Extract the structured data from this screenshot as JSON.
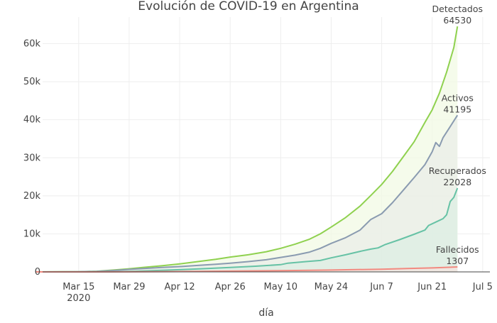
{
  "chart_data": {
    "type": "area",
    "title": "Evolución de COVID-19 en Argentina",
    "xlabel": "día",
    "ylabel": "",
    "x_start": "2020-03-03",
    "x_end": "2020-06-28",
    "xlim": [
      "2020-03-05",
      "2020-07-07"
    ],
    "ylim": [
      0,
      67000
    ],
    "x_ticks": [
      {
        "date": "2020-03-15",
        "label": "Mar 15",
        "sublabel": "2020"
      },
      {
        "date": "2020-03-29",
        "label": "Mar 29"
      },
      {
        "date": "2020-04-12",
        "label": "Apr 12"
      },
      {
        "date": "2020-04-26",
        "label": "Apr 26"
      },
      {
        "date": "2020-05-10",
        "label": "May 10"
      },
      {
        "date": "2020-05-24",
        "label": "May 24"
      },
      {
        "date": "2020-06-07",
        "label": "Jun 7"
      },
      {
        "date": "2020-06-21",
        "label": "Jun 21"
      },
      {
        "date": "2020-07-05",
        "label": "Jul 5"
      }
    ],
    "y_ticks": [
      {
        "value": 0,
        "label": "0"
      },
      {
        "value": 10000,
        "label": "10k"
      },
      {
        "value": 20000,
        "label": "20k"
      },
      {
        "value": 30000,
        "label": "30k"
      },
      {
        "value": 40000,
        "label": "40k"
      },
      {
        "value": 50000,
        "label": "50k"
      },
      {
        "value": 60000,
        "label": "60k"
      }
    ],
    "grid": true,
    "series": [
      {
        "name": "Detectados",
        "color": "#8fd14f",
        "fill": "#f2f9e4",
        "annotation": {
          "name": "Detectados",
          "value": "64530"
        },
        "points": [
          [
            "2020-03-03",
            0
          ],
          [
            "2020-03-10",
            30
          ],
          [
            "2020-03-15",
            60
          ],
          [
            "2020-03-20",
            160
          ],
          [
            "2020-03-25",
            500
          ],
          [
            "2020-03-29",
            820
          ],
          [
            "2020-04-02",
            1200
          ],
          [
            "2020-04-07",
            1600
          ],
          [
            "2020-04-12",
            2100
          ],
          [
            "2020-04-17",
            2700
          ],
          [
            "2020-04-22",
            3300
          ],
          [
            "2020-04-26",
            3900
          ],
          [
            "2020-05-01",
            4500
          ],
          [
            "2020-05-06",
            5300
          ],
          [
            "2020-05-10",
            6200
          ],
          [
            "2020-05-14",
            7300
          ],
          [
            "2020-05-18",
            8600
          ],
          [
            "2020-05-21",
            10000
          ],
          [
            "2020-05-24",
            11800
          ],
          [
            "2020-05-28",
            14300
          ],
          [
            "2020-06-01",
            17300
          ],
          [
            "2020-06-04",
            20100
          ],
          [
            "2020-06-07",
            23000
          ],
          [
            "2020-06-10",
            26400
          ],
          [
            "2020-06-13",
            30300
          ],
          [
            "2020-06-16",
            34200
          ],
          [
            "2020-06-19",
            39300
          ],
          [
            "2020-06-21",
            42600
          ],
          [
            "2020-06-23",
            47000
          ],
          [
            "2020-06-25",
            52500
          ],
          [
            "2020-06-27",
            59000
          ],
          [
            "2020-06-28",
            64530
          ]
        ]
      },
      {
        "name": "Activos",
        "color": "#8a9bb0",
        "fill": "#e9eee8",
        "annotation": {
          "name": "Activos",
          "value": "41195"
        },
        "points": [
          [
            "2020-03-03",
            0
          ],
          [
            "2020-03-10",
            25
          ],
          [
            "2020-03-15",
            50
          ],
          [
            "2020-03-20",
            130
          ],
          [
            "2020-03-25",
            400
          ],
          [
            "2020-03-29",
            650
          ],
          [
            "2020-04-02",
            900
          ],
          [
            "2020-04-07",
            1150
          ],
          [
            "2020-04-12",
            1400
          ],
          [
            "2020-04-17",
            1700
          ],
          [
            "2020-04-22",
            2000
          ],
          [
            "2020-04-26",
            2300
          ],
          [
            "2020-05-01",
            2700
          ],
          [
            "2020-05-06",
            3200
          ],
          [
            "2020-05-10",
            3800
          ],
          [
            "2020-05-14",
            4400
          ],
          [
            "2020-05-18",
            5200
          ],
          [
            "2020-05-21",
            6200
          ],
          [
            "2020-05-24",
            7500
          ],
          [
            "2020-05-28",
            9000
          ],
          [
            "2020-06-01",
            11000
          ],
          [
            "2020-06-04",
            13800
          ],
          [
            "2020-06-07",
            15300
          ],
          [
            "2020-06-10",
            18200
          ],
          [
            "2020-06-13",
            21500
          ],
          [
            "2020-06-16",
            24800
          ],
          [
            "2020-06-19",
            28200
          ],
          [
            "2020-06-21",
            31600
          ],
          [
            "2020-06-22",
            34000
          ],
          [
            "2020-06-23",
            33000
          ],
          [
            "2020-06-24",
            35300
          ],
          [
            "2020-06-26",
            38200
          ],
          [
            "2020-06-28",
            41195
          ]
        ]
      },
      {
        "name": "Recuperados",
        "color": "#66c2a5",
        "fill": "#dcede3",
        "annotation": {
          "name": "Recuperados",
          "value": "22028"
        },
        "points": [
          [
            "2020-03-03",
            0
          ],
          [
            "2020-03-15",
            5
          ],
          [
            "2020-03-25",
            50
          ],
          [
            "2020-03-29",
            120
          ],
          [
            "2020-04-05",
            350
          ],
          [
            "2020-04-12",
            580
          ],
          [
            "2020-04-19",
            850
          ],
          [
            "2020-04-26",
            1150
          ],
          [
            "2020-05-03",
            1500
          ],
          [
            "2020-05-10",
            1900
          ],
          [
            "2020-05-12",
            2300
          ],
          [
            "2020-05-17",
            2700
          ],
          [
            "2020-05-21",
            3000
          ],
          [
            "2020-05-24",
            3700
          ],
          [
            "2020-05-28",
            4500
          ],
          [
            "2020-06-01",
            5400
          ],
          [
            "2020-06-04",
            6000
          ],
          [
            "2020-06-06",
            6300
          ],
          [
            "2020-06-08",
            7200
          ],
          [
            "2020-06-12",
            8500
          ],
          [
            "2020-06-16",
            9900
          ],
          [
            "2020-06-19",
            11000
          ],
          [
            "2020-06-20",
            12200
          ],
          [
            "2020-06-22",
            13100
          ],
          [
            "2020-06-24",
            14000
          ],
          [
            "2020-06-25",
            15000
          ],
          [
            "2020-06-26",
            18500
          ],
          [
            "2020-06-27",
            19600
          ],
          [
            "2020-06-28",
            22028
          ]
        ]
      },
      {
        "name": "Fallecidos",
        "color": "#f28a80",
        "fill": "#f3e4df",
        "annotation": {
          "name": "Fallecidos",
          "value": "1307"
        },
        "points": [
          [
            "2020-03-03",
            0
          ],
          [
            "2020-03-15",
            2
          ],
          [
            "2020-03-29",
            27
          ],
          [
            "2020-04-12",
            90
          ],
          [
            "2020-04-26",
            200
          ],
          [
            "2020-05-10",
            320
          ],
          [
            "2020-05-24",
            480
          ],
          [
            "2020-06-07",
            700
          ],
          [
            "2020-06-14",
            880
          ],
          [
            "2020-06-21",
            1050
          ],
          [
            "2020-06-28",
            1307
          ]
        ]
      }
    ]
  }
}
